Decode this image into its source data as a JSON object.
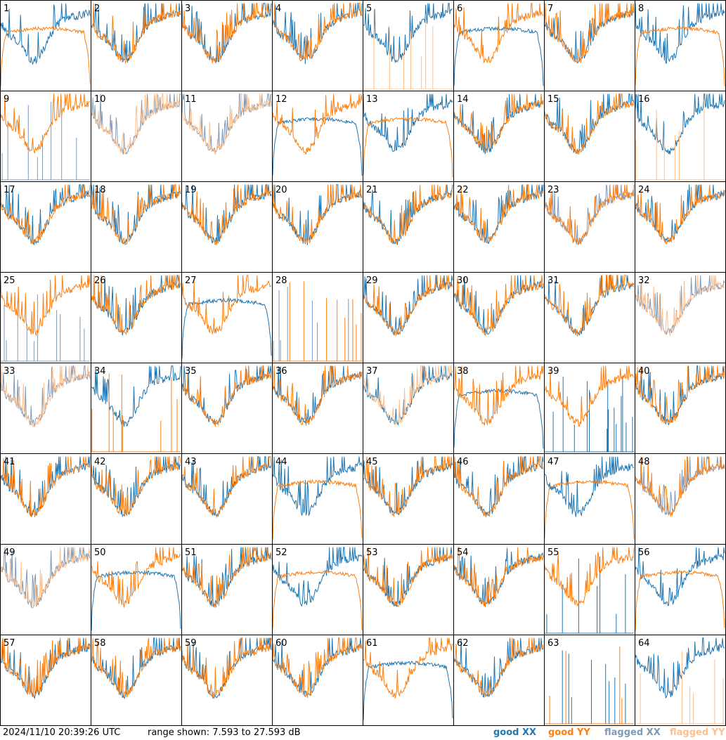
{
  "footer": {
    "timestamp": "2024/11/10 20:39:26 UTC",
    "range_text": "range shown: 7.593 to 27.593 dB",
    "legend": {
      "good_xx": "good XX",
      "good_yy": "good YY",
      "flagged_xx": "flagged XX",
      "flagged_yy": "flagged YY"
    }
  },
  "colors": {
    "good_xx": "#1f77b4",
    "good_yy": "#ff7f0e",
    "flagged_xx": "#7f9ab8",
    "flagged_yy": "#ffbf8c",
    "panel_border": "#000000"
  },
  "chart_data": {
    "type": "line",
    "layout": "small-multiples 8x8",
    "y_range_db": [
      7.593,
      27.593
    ],
    "series_names": [
      "good XX",
      "good YY",
      "flagged XX",
      "flagged YY"
    ],
    "panels": [
      {
        "id": "1",
        "xx": "good",
        "yy": "good",
        "shape_xx": "bowl",
        "shape_yy": "arch"
      },
      {
        "id": "2",
        "xx": "good",
        "yy": "good",
        "shape_xx": "bowl",
        "shape_yy": "bowl"
      },
      {
        "id": "3",
        "xx": "good",
        "yy": "good",
        "shape_xx": "bowl",
        "shape_yy": "bowl"
      },
      {
        "id": "4",
        "xx": "good",
        "yy": "good",
        "shape_xx": "bowl",
        "shape_yy": "bowl"
      },
      {
        "id": "5",
        "xx": "good",
        "yy": "flagged",
        "shape_xx": "bowl",
        "shape_yy": "spikes"
      },
      {
        "id": "6",
        "xx": "good",
        "yy": "good",
        "shape_xx": "arch",
        "shape_yy": "bowl"
      },
      {
        "id": "7",
        "xx": "good",
        "yy": "good",
        "shape_xx": "bowl",
        "shape_yy": "bowl"
      },
      {
        "id": "8",
        "xx": "good",
        "yy": "good",
        "shape_xx": "bowl",
        "shape_yy": "arch"
      },
      {
        "id": "9",
        "xx": "flagged",
        "yy": "good",
        "shape_xx": "spikes",
        "shape_yy": "bowl"
      },
      {
        "id": "10",
        "xx": "flagged",
        "yy": "flagged",
        "shape_xx": "bowl",
        "shape_yy": "bowl"
      },
      {
        "id": "11",
        "xx": "flagged",
        "yy": "flagged",
        "shape_xx": "bowl",
        "shape_yy": "bowl"
      },
      {
        "id": "12",
        "xx": "good",
        "yy": "good",
        "shape_xx": "arch",
        "shape_yy": "bowl"
      },
      {
        "id": "13",
        "xx": "good",
        "yy": "good",
        "shape_xx": "bowl",
        "shape_yy": "arch"
      },
      {
        "id": "14",
        "xx": "good",
        "yy": "good",
        "shape_xx": "bowl",
        "shape_yy": "bowl"
      },
      {
        "id": "15",
        "xx": "good",
        "yy": "good",
        "shape_xx": "bowl",
        "shape_yy": "bowl"
      },
      {
        "id": "16",
        "xx": "good",
        "yy": "flagged",
        "shape_xx": "bowl",
        "shape_yy": "spikes"
      },
      {
        "id": "17",
        "xx": "good",
        "yy": "good",
        "shape_xx": "bowl",
        "shape_yy": "bowl"
      },
      {
        "id": "18",
        "xx": "good",
        "yy": "good",
        "shape_xx": "bowl",
        "shape_yy": "bowl"
      },
      {
        "id": "19",
        "xx": "good",
        "yy": "good",
        "shape_xx": "bowl",
        "shape_yy": "bowl"
      },
      {
        "id": "20",
        "xx": "good",
        "yy": "good",
        "shape_xx": "bowl",
        "shape_yy": "bowl"
      },
      {
        "id": "21",
        "xx": "good",
        "yy": "good",
        "shape_xx": "bowl",
        "shape_yy": "bowl"
      },
      {
        "id": "22",
        "xx": "good",
        "yy": "good",
        "shape_xx": "bowl",
        "shape_yy": "bowl"
      },
      {
        "id": "23",
        "xx": "flagged",
        "yy": "good",
        "shape_xx": "bowl",
        "shape_yy": "bowl"
      },
      {
        "id": "24",
        "xx": "good",
        "yy": "good",
        "shape_xx": "bowl",
        "shape_yy": "bowl"
      },
      {
        "id": "25",
        "xx": "flagged",
        "yy": "good",
        "shape_xx": "spikes",
        "shape_yy": "bowl"
      },
      {
        "id": "26",
        "xx": "good",
        "yy": "good",
        "shape_xx": "bowl",
        "shape_yy": "bowl"
      },
      {
        "id": "27",
        "xx": "good",
        "yy": "good",
        "shape_xx": "arch",
        "shape_yy": "bowl"
      },
      {
        "id": "28",
        "xx": "flagged",
        "yy": "good",
        "shape_xx": "spikes",
        "shape_yy": "spikes"
      },
      {
        "id": "29",
        "xx": "good",
        "yy": "good",
        "shape_xx": "bowl",
        "shape_yy": "bowl"
      },
      {
        "id": "30",
        "xx": "good",
        "yy": "good",
        "shape_xx": "bowl",
        "shape_yy": "bowl"
      },
      {
        "id": "31",
        "xx": "good",
        "yy": "good",
        "shape_xx": "bowl",
        "shape_yy": "bowl"
      },
      {
        "id": "32",
        "xx": "flagged",
        "yy": "flagged",
        "shape_xx": "bowl",
        "shape_yy": "bowl"
      },
      {
        "id": "33",
        "xx": "flagged",
        "yy": "flagged",
        "shape_xx": "bowl",
        "shape_yy": "bowl"
      },
      {
        "id": "34",
        "xx": "good",
        "yy": "good",
        "shape_xx": "bowl",
        "shape_yy": "spikes"
      },
      {
        "id": "35",
        "xx": "good",
        "yy": "good",
        "shape_xx": "bowl",
        "shape_yy": "bowl"
      },
      {
        "id": "36",
        "xx": "good",
        "yy": "good",
        "shape_xx": "bowl",
        "shape_yy": "bowl"
      },
      {
        "id": "37",
        "xx": "good",
        "yy": "flagged",
        "shape_xx": "bowl",
        "shape_yy": "bowl"
      },
      {
        "id": "38",
        "xx": "good",
        "yy": "good",
        "shape_xx": "arch",
        "shape_yy": "bowl"
      },
      {
        "id": "39",
        "xx": "good",
        "yy": "good",
        "shape_xx": "spikes",
        "shape_yy": "bowl"
      },
      {
        "id": "40",
        "xx": "good",
        "yy": "good",
        "shape_xx": "bowl",
        "shape_yy": "bowl"
      },
      {
        "id": "41",
        "xx": "good",
        "yy": "good",
        "shape_xx": "bowl",
        "shape_yy": "bowl"
      },
      {
        "id": "42",
        "xx": "good",
        "yy": "good",
        "shape_xx": "bowl",
        "shape_yy": "bowl"
      },
      {
        "id": "43",
        "xx": "good",
        "yy": "good",
        "shape_xx": "bowl",
        "shape_yy": "bowl"
      },
      {
        "id": "44",
        "xx": "good",
        "yy": "good",
        "shape_xx": "bowl",
        "shape_yy": "arch"
      },
      {
        "id": "45",
        "xx": "good",
        "yy": "good",
        "shape_xx": "bowl",
        "shape_yy": "bowl"
      },
      {
        "id": "46",
        "xx": "good",
        "yy": "good",
        "shape_xx": "bowl",
        "shape_yy": "bowl"
      },
      {
        "id": "47",
        "xx": "good",
        "yy": "good",
        "shape_xx": "bowl",
        "shape_yy": "arch"
      },
      {
        "id": "48",
        "xx": "flagged",
        "yy": "good",
        "shape_xx": "bowl",
        "shape_yy": "bowl"
      },
      {
        "id": "49",
        "xx": "flagged",
        "yy": "flagged",
        "shape_xx": "bowl",
        "shape_yy": "bowl"
      },
      {
        "id": "50",
        "xx": "good",
        "yy": "good",
        "shape_xx": "arch",
        "shape_yy": "bowl"
      },
      {
        "id": "51",
        "xx": "good",
        "yy": "good",
        "shape_xx": "bowl",
        "shape_yy": "bowl"
      },
      {
        "id": "52",
        "xx": "good",
        "yy": "good",
        "shape_xx": "bowl",
        "shape_yy": "arch"
      },
      {
        "id": "53",
        "xx": "good",
        "yy": "good",
        "shape_xx": "bowl",
        "shape_yy": "bowl"
      },
      {
        "id": "54",
        "xx": "good",
        "yy": "good",
        "shape_xx": "bowl",
        "shape_yy": "bowl"
      },
      {
        "id": "55",
        "xx": "good",
        "yy": "good",
        "shape_xx": "spikes",
        "shape_yy": "bowl"
      },
      {
        "id": "56",
        "xx": "good",
        "yy": "good",
        "shape_xx": "bowl",
        "shape_yy": "arch"
      },
      {
        "id": "57",
        "xx": "good",
        "yy": "good",
        "shape_xx": "bowl",
        "shape_yy": "bowl"
      },
      {
        "id": "58",
        "xx": "good",
        "yy": "good",
        "shape_xx": "bowl",
        "shape_yy": "bowl"
      },
      {
        "id": "59",
        "xx": "good",
        "yy": "good",
        "shape_xx": "bowl",
        "shape_yy": "bowl"
      },
      {
        "id": "60",
        "xx": "good",
        "yy": "good",
        "shape_xx": "bowl",
        "shape_yy": "bowl"
      },
      {
        "id": "61",
        "xx": "good",
        "yy": "good",
        "shape_xx": "arch",
        "shape_yy": "bowl"
      },
      {
        "id": "62",
        "xx": "good",
        "yy": "good",
        "shape_xx": "bowl",
        "shape_yy": "bowl"
      },
      {
        "id": "63",
        "xx": "good",
        "yy": "good",
        "shape_xx": "spikes",
        "shape_yy": "spikes"
      },
      {
        "id": "64",
        "xx": "good",
        "yy": "flagged",
        "shape_xx": "bowl",
        "shape_yy": "spikes"
      }
    ]
  }
}
